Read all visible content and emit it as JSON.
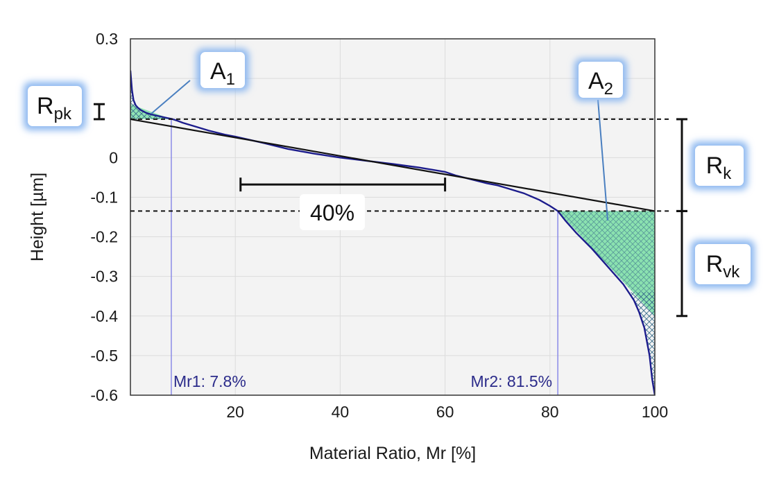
{
  "chart_data": {
    "type": "line",
    "title": "",
    "xlabel": "Material Ratio, Mr [%]",
    "ylabel": "Height [µm]",
    "xlim": [
      0,
      100
    ],
    "ylim": [
      -0.6,
      0.3
    ],
    "x_ticks": [
      20,
      40,
      60,
      80,
      100
    ],
    "x_tick_labels": [
      "20",
      "40",
      "60",
      "80",
      "100"
    ],
    "y_ticks": [
      0.3,
      0.2,
      0.1,
      0,
      -0.1,
      -0.2,
      -0.3,
      -0.4,
      -0.5,
      -0.6
    ],
    "y_tick_labels": [
      "0.3",
      "",
      "",
      "0",
      "-0.1",
      "-0.2",
      "-0.3",
      "-0.4",
      "-0.5",
      "-0.6"
    ],
    "grid": true,
    "series": [
      {
        "x": [
          0,
          0.3,
          0.6,
          1,
          1.5,
          2,
          3,
          4,
          5,
          6,
          7,
          7.8,
          9,
          10,
          12,
          15,
          18,
          20,
          25,
          30,
          35,
          40,
          45,
          50,
          55,
          60,
          62,
          65,
          68,
          70,
          72,
          75,
          78,
          80,
          81.5,
          83,
          85,
          88,
          90,
          92,
          94,
          95,
          96,
          97,
          98,
          99,
          99.5,
          100
        ],
        "y": [
          0.22,
          0.17,
          0.145,
          0.132,
          0.125,
          0.12,
          0.113,
          0.109,
          0.106,
          0.103,
          0.1,
          0.098,
          0.093,
          0.088,
          0.08,
          0.068,
          0.058,
          0.053,
          0.038,
          0.022,
          0.01,
          0.0,
          -0.008,
          -0.016,
          -0.025,
          -0.036,
          -0.045,
          -0.055,
          -0.065,
          -0.07,
          -0.078,
          -0.09,
          -0.107,
          -0.122,
          -0.135,
          -0.16,
          -0.19,
          -0.23,
          -0.26,
          -0.29,
          -0.32,
          -0.34,
          -0.36,
          -0.39,
          -0.43,
          -0.5,
          -0.56,
          -0.6
        ]
      }
    ],
    "core_line": {
      "x": [
        0,
        100
      ],
      "y": [
        0.097,
        -0.135
      ]
    },
    "rpk_level": 0.135,
    "upper_limit": 0.097,
    "lower_limit": -0.135,
    "rvk_level": -0.4,
    "mr1": {
      "x": 7.8,
      "label": "Mr1: 7.8%"
    },
    "mr2": {
      "x": 81.5,
      "label": "Mr2: 81.5%"
    },
    "span_40": {
      "x": [
        21,
        60
      ],
      "y": -0.068,
      "label": "40%"
    },
    "callouts": {
      "A1": {
        "main": "A",
        "sub": "1"
      },
      "A2": {
        "main": "A",
        "sub": "2"
      },
      "Rpk": {
        "main": "R",
        "sub": "pk"
      },
      "Rk": {
        "main": "R",
        "sub": "k"
      },
      "Rvk": {
        "main": "R",
        "sub": "vk"
      }
    },
    "colors": {
      "curve": "#1c1c8c",
      "area_fill": "#7fe0a8",
      "hatch": "#3a6e8c",
      "mr_lines": "#8a8ae8",
      "plot_bg": "#f3f3f3",
      "grid": "#dcdcdc",
      "callout_glow": "#8db8f0"
    }
  }
}
